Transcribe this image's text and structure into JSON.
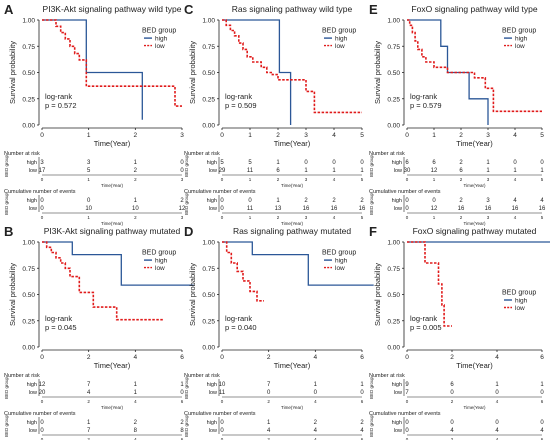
{
  "colors": {
    "high": "#2b5797",
    "low": "#e01b1b",
    "axis": "#222222"
  },
  "axis_common": {
    "ylabel": "Survival probability",
    "xlabel": "Time(Year)",
    "risk_xlabel": "Time(Year)",
    "legend_title": "BED group",
    "risk_title": "Number at risk",
    "events_title": "Cumulative number of events",
    "strata_axis": "BED group",
    "pvalue_title": "log-rank",
    "strata": [
      "high",
      "low"
    ]
  },
  "chart_data": [
    {
      "type": "line",
      "letter": "A",
      "title": "PI3K-Akt signaling pathway wild type",
      "xlim": [
        0,
        3
      ],
      "xticks": [
        0,
        1,
        2,
        3
      ],
      "ylim": [
        0,
        1
      ],
      "yticks": [
        "0.00",
        "0.25",
        "0.50",
        "0.75",
        "1.00"
      ],
      "pvalue": "p = 0.572",
      "legend_y": 0.88,
      "risk_ticks": [
        0,
        1,
        2,
        3
      ],
      "series": [
        {
          "name": "high",
          "x": [
            0,
            0.95,
            0.95,
            2.15,
            2.15
          ],
          "y": [
            1,
            1,
            0.5,
            0.5,
            0.05
          ]
        },
        {
          "name": "low",
          "x": [
            0,
            0.3,
            0.3,
            0.4,
            0.4,
            0.5,
            0.5,
            0.6,
            0.6,
            0.7,
            0.7,
            0.8,
            0.8,
            0.95,
            0.95,
            2.85,
            2.85,
            3.0
          ],
          "y": [
            1,
            1,
            0.94,
            0.94,
            0.88,
            0.88,
            0.82,
            0.82,
            0.75,
            0.75,
            0.68,
            0.68,
            0.62,
            0.62,
            0.37,
            0.37,
            0.18,
            0.18
          ]
        }
      ],
      "risk": {
        "high": [
          "3",
          "3",
          "1",
          "0"
        ],
        "low": [
          "17",
          "5",
          "2",
          "0"
        ]
      },
      "events": {
        "high": [
          "0",
          "0",
          "1",
          "2"
        ],
        "low": [
          "0",
          "10",
          "10",
          "12"
        ]
      }
    },
    {
      "type": "line",
      "letter": "C",
      "title": "Ras signaling pathway wild type",
      "xlim": [
        0,
        5
      ],
      "xticks": [
        0,
        1,
        2,
        3,
        4,
        5
      ],
      "ylim": [
        0,
        1
      ],
      "yticks": [
        "0.00",
        "0.25",
        "0.50",
        "0.75",
        "1.00"
      ],
      "pvalue": "p = 0.509",
      "legend_y": 0.88,
      "risk_ticks": [
        0,
        1,
        2,
        3,
        4,
        5
      ],
      "series": [
        {
          "name": "high",
          "x": [
            0,
            2.05,
            2.05,
            2.45,
            2.45
          ],
          "y": [
            1,
            1,
            0.5,
            0.5,
            0
          ]
        },
        {
          "name": "low",
          "x": [
            0,
            0.15,
            0.15,
            0.3,
            0.3,
            0.45,
            0.45,
            0.6,
            0.6,
            0.75,
            0.75,
            0.9,
            0.9,
            1.1,
            1.1,
            1.4,
            1.4,
            1.6,
            1.6,
            1.8,
            1.8,
            2.0,
            2.0,
            3.0,
            3.0,
            3.3,
            3.3,
            5.0
          ],
          "y": [
            1,
            1,
            0.95,
            0.95,
            0.9,
            0.9,
            0.85,
            0.85,
            0.78,
            0.78,
            0.72,
            0.72,
            0.65,
            0.65,
            0.6,
            0.6,
            0.55,
            0.55,
            0.5,
            0.5,
            0.48,
            0.48,
            0.43,
            0.43,
            0.32,
            0.32,
            0.12,
            0.12
          ]
        }
      ],
      "risk": {
        "high": [
          "5",
          "5",
          "1",
          "0",
          "0",
          "0"
        ],
        "low": [
          "29",
          "11",
          "6",
          "1",
          "1",
          "1"
        ]
      },
      "events": {
        "high": [
          "0",
          "0",
          "1",
          "2",
          "2",
          "2"
        ],
        "low": [
          "0",
          "11",
          "13",
          "16",
          "16",
          "16"
        ]
      }
    },
    {
      "type": "line",
      "letter": "E",
      "title": "FoxO signaling pathway wild type",
      "xlim": [
        0,
        5
      ],
      "xticks": [
        0,
        1,
        2,
        3,
        4,
        5
      ],
      "ylim": [
        0,
        1
      ],
      "yticks": [
        "0.00",
        "0.25",
        "0.50",
        "0.75",
        "1.00"
      ],
      "pvalue": "p = 0.579",
      "legend_y": 0.88,
      "risk_ticks": [
        0,
        1,
        2,
        3,
        4,
        5
      ],
      "series": [
        {
          "name": "high",
          "x": [
            0,
            1.25,
            1.25,
            1.5,
            1.5,
            2.3,
            2.3,
            3.0,
            3.0
          ],
          "y": [
            1,
            1,
            0.75,
            0.75,
            0.5,
            0.5,
            0.25,
            0.25,
            0
          ]
        },
        {
          "name": "low",
          "x": [
            0,
            0.1,
            0.1,
            0.2,
            0.2,
            0.3,
            0.3,
            0.4,
            0.4,
            0.55,
            0.55,
            0.7,
            0.7,
            1.0,
            1.0,
            1.5,
            1.5,
            2.5,
            2.5,
            2.9,
            2.9,
            3.2,
            3.2,
            5.0
          ],
          "y": [
            1,
            1,
            0.95,
            0.95,
            0.88,
            0.88,
            0.8,
            0.8,
            0.72,
            0.72,
            0.65,
            0.65,
            0.6,
            0.6,
            0.55,
            0.55,
            0.5,
            0.5,
            0.45,
            0.45,
            0.35,
            0.35,
            0.13,
            0.13
          ]
        }
      ],
      "risk": {
        "high": [
          "6",
          "6",
          "2",
          "1",
          "0",
          "0"
        ],
        "low": [
          "30",
          "12",
          "6",
          "1",
          "1",
          "1"
        ]
      },
      "events": {
        "high": [
          "0",
          "0",
          "2",
          "3",
          "4",
          "4"
        ],
        "low": [
          "0",
          "12",
          "16",
          "16",
          "16",
          "16"
        ]
      }
    },
    {
      "type": "line",
      "letter": "B",
      "title": "PI3K-Akt signaling pathway mutated",
      "xlim": [
        0,
        6
      ],
      "xticks": [
        0,
        2,
        4,
        6
      ],
      "ylim": [
        0,
        1
      ],
      "yticks": [
        "0.00",
        "0.25",
        "0.50",
        "0.75",
        "1.00"
      ],
      "pvalue": "p = 0.045",
      "legend_y": 0.88,
      "risk_ticks": [
        0,
        2,
        4,
        6
      ],
      "series": [
        {
          "name": "high",
          "x": [
            0,
            1.3,
            1.3,
            3.4,
            3.4,
            6.5
          ],
          "y": [
            1,
            1,
            0.88,
            0.88,
            0.59,
            0.59
          ]
        },
        {
          "name": "low",
          "x": [
            0,
            0.2,
            0.2,
            0.4,
            0.4,
            0.6,
            0.6,
            0.8,
            0.8,
            1.0,
            1.0,
            1.2,
            1.2,
            1.6,
            1.6,
            2.2,
            2.2,
            3.2,
            3.2,
            5.2
          ],
          "y": [
            1,
            1,
            0.95,
            0.95,
            0.9,
            0.9,
            0.85,
            0.85,
            0.8,
            0.8,
            0.75,
            0.75,
            0.67,
            0.67,
            0.52,
            0.52,
            0.38,
            0.38,
            0.26,
            0.26
          ]
        }
      ],
      "risk": {
        "high": [
          "12",
          "7",
          "1",
          "1"
        ],
        "low": [
          "20",
          "4",
          "1",
          "0"
        ]
      },
      "events": {
        "high": [
          "0",
          "1",
          "2",
          "2"
        ],
        "low": [
          "0",
          "7",
          "8",
          "8"
        ]
      }
    },
    {
      "type": "line",
      "letter": "D",
      "title": "Ras signaling pathway mutated",
      "xlim": [
        0,
        6
      ],
      "xticks": [
        0,
        2,
        4,
        6
      ],
      "ylim": [
        0,
        1
      ],
      "yticks": [
        "0.00",
        "0.25",
        "0.50",
        "0.75",
        "1.00"
      ],
      "pvalue": "p = 0.040",
      "legend_y": 0.88,
      "risk_ticks": [
        0,
        2,
        4,
        6
      ],
      "series": [
        {
          "name": "high",
          "x": [
            0,
            1.3,
            1.3,
            3.7,
            3.7,
            6.5
          ],
          "y": [
            1,
            1,
            0.88,
            0.88,
            0.59,
            0.59
          ]
        },
        {
          "name": "low",
          "x": [
            0,
            0.2,
            0.2,
            0.4,
            0.4,
            0.65,
            0.65,
            0.9,
            0.9,
            1.2,
            1.2,
            1.5,
            1.5,
            1.8
          ],
          "y": [
            1,
            1,
            0.9,
            0.9,
            0.8,
            0.8,
            0.72,
            0.72,
            0.63,
            0.63,
            0.53,
            0.53,
            0.44,
            0.44
          ]
        }
      ],
      "risk": {
        "high": [
          "10",
          "7",
          "1",
          "1"
        ],
        "low": [
          "11",
          "0",
          "0",
          "0"
        ]
      },
      "events": {
        "high": [
          "0",
          "1",
          "2",
          "2"
        ],
        "low": [
          "0",
          "4",
          "4",
          "4"
        ]
      }
    },
    {
      "type": "line",
      "letter": "F",
      "title": "FoxO signaling pathway mutated",
      "xlim": [
        0,
        6
      ],
      "xticks": [
        0,
        2,
        4,
        6
      ],
      "ylim": [
        0,
        1
      ],
      "yticks": [
        "0.00",
        "0.25",
        "0.50",
        "0.75",
        "1.00"
      ],
      "pvalue": "p = 0.005",
      "legend_y": 0.5,
      "risk_ticks": [
        0,
        2,
        4,
        6
      ],
      "series": [
        {
          "name": "high",
          "x": [
            0,
            6.5
          ],
          "y": [
            1,
            1
          ]
        },
        {
          "name": "low",
          "x": [
            0,
            0.8,
            0.8,
            1.4,
            1.4,
            1.55,
            1.55,
            1.65,
            1.65,
            2.0
          ],
          "y": [
            1,
            1,
            0.8,
            0.8,
            0.6,
            0.6,
            0.4,
            0.4,
            0.2,
            0.2
          ]
        }
      ],
      "risk": {
        "high": [
          "9",
          "6",
          "1",
          "1"
        ],
        "low": [
          "7",
          "0",
          "0",
          "0"
        ]
      },
      "events": {
        "high": [
          "0",
          "0",
          "0",
          "0"
        ],
        "low": [
          "0",
          "4",
          "4",
          "4"
        ]
      }
    }
  ]
}
